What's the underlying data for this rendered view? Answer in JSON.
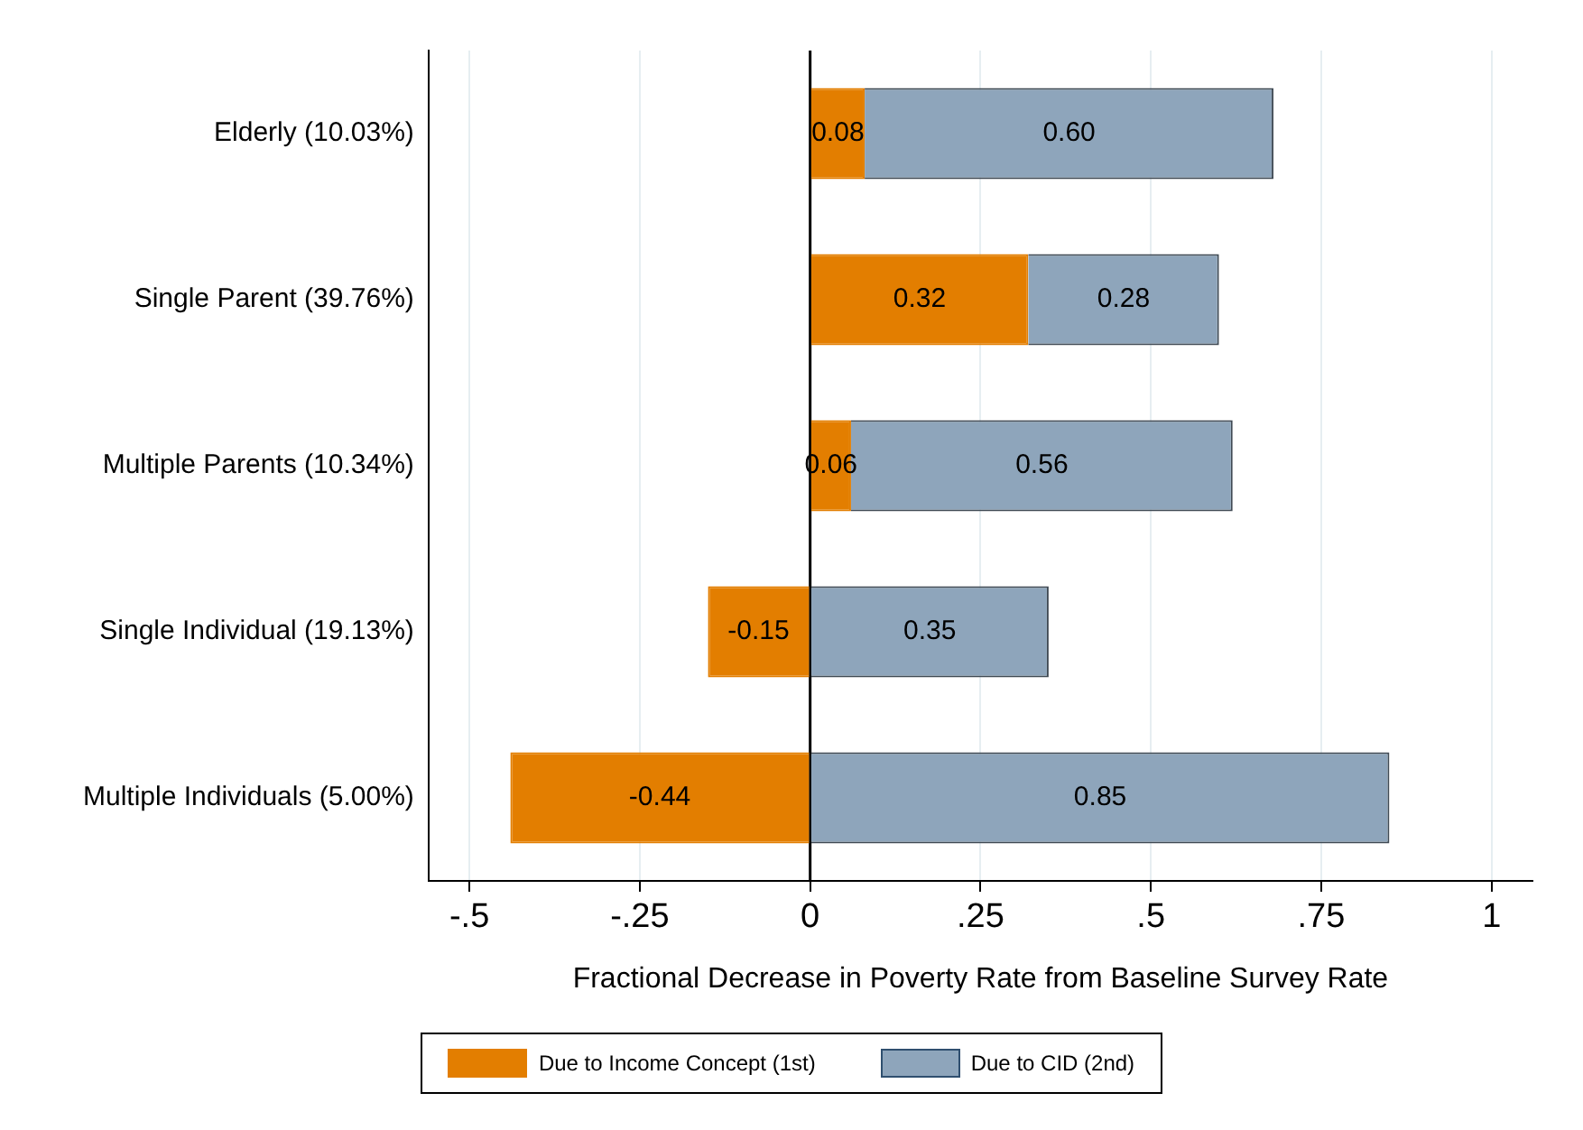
{
  "chart_data": {
    "type": "bar",
    "orientation": "horizontal",
    "stacked": true,
    "xlabel": "Fractional Decrease in Poverty Rate from Baseline Survey Rate",
    "categories": [
      "Elderly (10.03%)",
      "Single Parent (39.76%)",
      "Multiple Parents (10.34%)",
      "Single Individual (19.13%)",
      "Multiple Individuals (5.00%)"
    ],
    "series": [
      {
        "name": "Due to Income Concept (1st)",
        "color": "#e37e00",
        "values": [
          0.08,
          0.32,
          0.06,
          -0.15,
          -0.44
        ],
        "value_labels": [
          "0.08",
          "0.32",
          "0.06",
          "-0.15",
          "-0.44"
        ]
      },
      {
        "name": "Due to CID (2nd)",
        "color": "#8ea5bb",
        "values": [
          0.6,
          0.28,
          0.56,
          0.35,
          0.85
        ],
        "value_labels": [
          "0.60",
          "0.28",
          "0.56",
          "0.35",
          "0.85"
        ]
      }
    ],
    "xlim": [
      -0.56,
      1.06
    ],
    "xticks": [
      {
        "value": -0.5,
        "label": "-.5"
      },
      {
        "value": -0.25,
        "label": "-.25"
      },
      0,
      {
        "value": 0.25,
        "label": ".25"
      },
      {
        "value": 0.5,
        "label": ".5"
      },
      {
        "value": 0.75,
        "label": ".75"
      },
      1
    ],
    "ref_lines": [
      {
        "axis": "x",
        "value": 0,
        "color": "#000000"
      }
    ],
    "grid": "x",
    "legend": "bottom"
  }
}
